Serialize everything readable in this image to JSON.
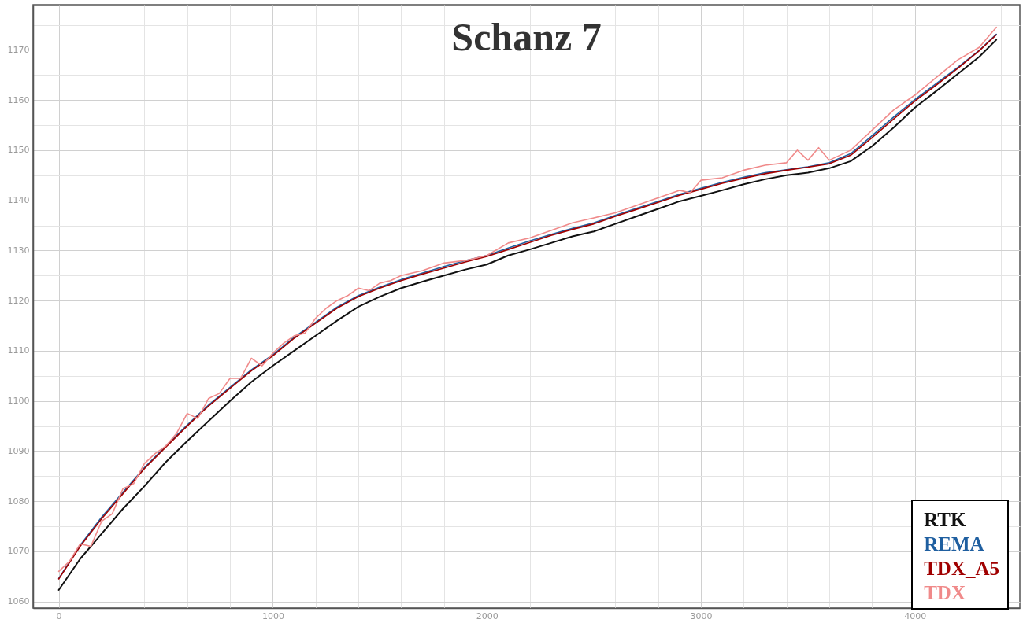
{
  "chart_data": {
    "type": "line",
    "title": "Schanz 7",
    "legend": "bottom right",
    "grid": true,
    "marker": "none",
    "line_style": "solid",
    "xlim": [
      -120,
      4490
    ],
    "ylim": [
      1058.7,
      1179
    ],
    "xticks": [
      0,
      {
        "value": 200,
        "label": null
      },
      {
        "value": 400,
        "label": null
      },
      {
        "value": 600,
        "label": null
      },
      {
        "value": 800,
        "label": null
      },
      1000,
      {
        "value": 1200,
        "label": null
      },
      {
        "value": 1400,
        "label": null
      },
      {
        "value": 1600,
        "label": null
      },
      {
        "value": 1800,
        "label": null
      },
      2000,
      {
        "value": 2200,
        "label": null
      },
      {
        "value": 2400,
        "label": null
      },
      {
        "value": 2600,
        "label": null
      },
      {
        "value": 2800,
        "label": null
      },
      3000,
      {
        "value": 3200,
        "label": null
      },
      {
        "value": 3400,
        "label": null
      },
      {
        "value": 3600,
        "label": null
      },
      {
        "value": 3800,
        "label": null
      },
      4000,
      {
        "value": 4200,
        "label": null
      },
      {
        "value": 4400,
        "label": null
      }
    ],
    "yticks": [
      1060,
      {
        "value": 1065,
        "label": null
      },
      1070,
      {
        "value": 1075,
        "label": null
      },
      1080,
      {
        "value": 1085,
        "label": null
      },
      1090,
      {
        "value": 1095,
        "label": null
      },
      1100,
      {
        "value": 1105,
        "label": null
      },
      1110,
      {
        "value": 1115,
        "label": null
      },
      1120,
      {
        "value": 1125,
        "label": null
      },
      1130,
      {
        "value": 1135,
        "label": null
      },
      1140,
      {
        "value": 1145,
        "label": null
      },
      1150,
      {
        "value": 1155,
        "label": null
      },
      1160,
      {
        "value": 1165,
        "label": null
      },
      1170,
      {
        "value": 1175,
        "label": null
      }
    ],
    "series": [
      {
        "name": "RTK",
        "color": "#111111",
        "x": [
          0,
          100,
          200,
          300,
          400,
          500,
          600,
          700,
          800,
          900,
          1000,
          1100,
          1200,
          1300,
          1400,
          1500,
          1600,
          1700,
          1800,
          1900,
          2000,
          2100,
          2200,
          2300,
          2400,
          2500,
          2600,
          2700,
          2800,
          2900,
          3000,
          3100,
          3200,
          3300,
          3400,
          3500,
          3600,
          3700,
          3800,
          3900,
          4000,
          4100,
          4200,
          4300,
          4380
        ],
        "values": [
          1062.3,
          1068.5,
          1073.5,
          1078.5,
          1083,
          1087.8,
          1092,
          1096,
          1100,
          1103.8,
          1107,
          1110,
          1113,
          1116,
          1118.8,
          1120.8,
          1122.5,
          1123.8,
          1125,
          1126.2,
          1127.2,
          1129,
          1130.2,
          1131.5,
          1132.8,
          1133.8,
          1135.3,
          1136.8,
          1138.3,
          1139.8,
          1140.9,
          1142,
          1143.2,
          1144.2,
          1145,
          1145.5,
          1146.4,
          1147.8,
          1150.8,
          1154.5,
          1158.5,
          1161.8,
          1165.2,
          1168.6,
          1172
        ]
      },
      {
        "name": "REMA",
        "color": "#1f5fa0",
        "x": [
          0,
          100,
          200,
          300,
          400,
          500,
          600,
          700,
          800,
          900,
          1000,
          1100,
          1200,
          1300,
          1400,
          1500,
          1600,
          1700,
          1800,
          1900,
          2000,
          2100,
          2200,
          2300,
          2400,
          2500,
          2600,
          2700,
          2800,
          2900,
          3000,
          3100,
          3200,
          3300,
          3400,
          3500,
          3600,
          3700,
          3800,
          3900,
          4000,
          4100,
          4200,
          4300,
          4380
        ],
        "values": [
          1064.6,
          1071.2,
          1076.8,
          1081.8,
          1086.7,
          1091,
          1095.2,
          1099.2,
          1102.7,
          1106.2,
          1109.2,
          1112.7,
          1115.7,
          1118.7,
          1121,
          1122.7,
          1124.2,
          1125.5,
          1126.8,
          1128,
          1129,
          1130.5,
          1131.9,
          1133.2,
          1134.4,
          1135.5,
          1137,
          1138.4,
          1139.8,
          1141.2,
          1142.4,
          1143.6,
          1144.6,
          1145.5,
          1146.1,
          1146.7,
          1147.5,
          1149.3,
          1152.9,
          1156.6,
          1160.1,
          1163.3,
          1166.5,
          1169.9,
          1173.1
        ]
      },
      {
        "name": "TDX_A5",
        "color": "#a00000",
        "x": [
          0,
          100,
          200,
          300,
          400,
          500,
          600,
          700,
          800,
          900,
          1000,
          1100,
          1200,
          1300,
          1400,
          1500,
          1600,
          1700,
          1800,
          1900,
          2000,
          2100,
          2200,
          2300,
          2400,
          2500,
          2600,
          2700,
          2800,
          2900,
          3000,
          3100,
          3200,
          3300,
          3400,
          3500,
          3600,
          3700,
          3800,
          3900,
          4000,
          4100,
          4200,
          4300,
          4380
        ],
        "values": [
          1064.5,
          1071,
          1076.5,
          1081.5,
          1086.5,
          1090.8,
          1095,
          1099,
          1102.5,
          1106,
          1109,
          1112.5,
          1115.5,
          1118.5,
          1120.8,
          1122.5,
          1124,
          1125.3,
          1126.5,
          1127.7,
          1128.8,
          1130.2,
          1131.6,
          1133,
          1134.2,
          1135.3,
          1136.8,
          1138.2,
          1139.6,
          1141,
          1142.2,
          1143.4,
          1144.4,
          1145.3,
          1146,
          1146.6,
          1147.3,
          1149,
          1152.5,
          1156.2,
          1159.8,
          1163,
          1166.3,
          1169.8,
          1173
        ]
      },
      {
        "name": "TDX",
        "color": "#f08a8a",
        "x": [
          0,
          50,
          100,
          150,
          200,
          250,
          300,
          350,
          400,
          450,
          500,
          550,
          600,
          650,
          700,
          750,
          800,
          850,
          900,
          950,
          1000,
          1050,
          1100,
          1150,
          1200,
          1250,
          1300,
          1350,
          1400,
          1450,
          1500,
          1550,
          1600,
          1700,
          1800,
          1900,
          2000,
          2100,
          2200,
          2300,
          2400,
          2500,
          2600,
          2700,
          2800,
          2900,
          2950,
          3000,
          3100,
          3200,
          3300,
          3400,
          3450,
          3500,
          3550,
          3600,
          3700,
          3800,
          3900,
          4000,
          4100,
          4200,
          4300,
          4380
        ],
        "values": [
          1066,
          1068,
          1071.5,
          1071,
          1076,
          1077.5,
          1082.5,
          1083.5,
          1087.5,
          1089.5,
          1091,
          1093.5,
          1097.5,
          1096.5,
          1100.5,
          1101.5,
          1104.5,
          1104.5,
          1108.5,
          1107,
          1109.5,
          1111.5,
          1113,
          1113.5,
          1116.5,
          1118.5,
          1120,
          1121,
          1122.5,
          1122,
          1123.5,
          1124,
          1125,
          1126,
          1127.5,
          1128,
          1129,
          1131.5,
          1132.5,
          1134,
          1135.5,
          1136.5,
          1137.5,
          1139,
          1140.5,
          1142,
          1141.5,
          1144,
          1144.5,
          1146,
          1147,
          1147.5,
          1150,
          1148,
          1150.5,
          1148,
          1150,
          1154,
          1158,
          1161,
          1164.5,
          1168,
          1170.5,
          1174.5
        ]
      }
    ]
  }
}
